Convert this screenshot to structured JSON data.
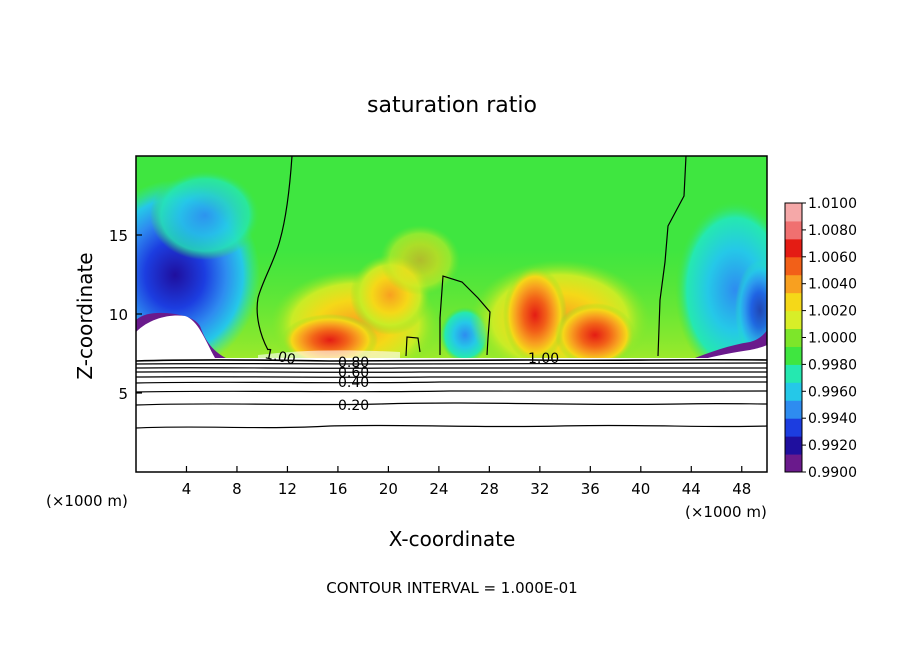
{
  "chart_data": {
    "type": "heatmap",
    "title": "saturation ratio",
    "xlabel": "X-coordinate",
    "ylabel": "Z-coordinate",
    "x_unit_left": "(×1000 m)",
    "x_unit_right": "(×1000 m)",
    "xlim": [
      0,
      50
    ],
    "ylim": [
      0,
      20
    ],
    "x_ticks": [
      "4",
      "8",
      "12",
      "16",
      "20",
      "24",
      "28",
      "32",
      "36",
      "40",
      "44",
      "48"
    ],
    "y_ticks": [
      "5",
      "10",
      "15"
    ],
    "colorbar": {
      "ticks": [
        "1.0100",
        "1.0080",
        "1.0060",
        "1.0040",
        "1.0020",
        "1.0000",
        "0.9980",
        "0.9960",
        "0.9940",
        "0.9920",
        "0.9900"
      ],
      "colors": [
        "#6a1a8c",
        "#1f0f9e",
        "#1c3de0",
        "#2e8cf0",
        "#25c8e8",
        "#25e8b0",
        "#3fe640",
        "#7de62a",
        "#d8ee28",
        "#f5d818",
        "#f8a020",
        "#f26018",
        "#e41c14",
        "#f07070",
        "#f5a8a8"
      ]
    },
    "contour_labels": [
      "1.00",
      "0.80",
      "0.60",
      "0.40",
      "0.20",
      "1.00"
    ],
    "contour_interval_text": "CONTOUR INTERVAL = 1.000E-01"
  }
}
